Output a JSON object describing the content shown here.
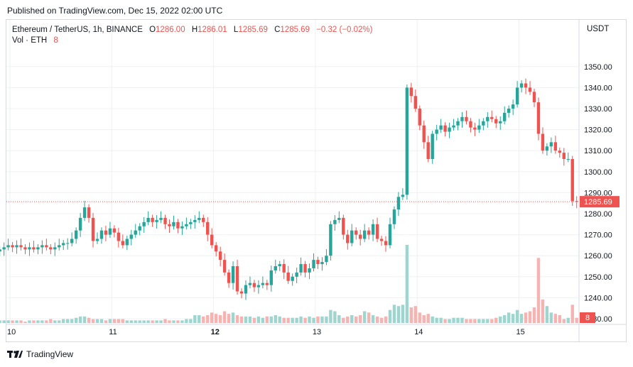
{
  "header": {
    "published_text": "Published on TradingView.com, Dec 15, 2022 02:00 UTC"
  },
  "legend": {
    "symbol": "Ethereum / TetherUS, 1h, BINANCE",
    "open_label": "O",
    "open": "1286.00",
    "high_label": "H",
    "high": "1286.01",
    "low_label": "L",
    "low": "1285.69",
    "close_label": "C",
    "close": "1285.69",
    "change": "−0.32 (−0.02%)",
    "vol_label": "Vol · ETH",
    "vol_value": "8"
  },
  "quote_currency": "USDT",
  "footer": {
    "logo_icon": "tradingview-logo-icon",
    "brand": "TradingView"
  },
  "colors": {
    "up": "#26a69a",
    "down": "#ef5350",
    "vol_up": "#9ed6cf",
    "vol_down": "#f5b3b1",
    "grid": "#eef0f3",
    "last_price_line": "#ef5350",
    "axis_text": "#131722"
  },
  "chart_data": {
    "type": "candlestick",
    "timeframe": "1h",
    "ylim": [
      1230,
      1355
    ],
    "y_ticks": [
      "1350.00",
      "1340.00",
      "1330.00",
      "1320.00",
      "1310.00",
      "1300.00",
      "1290.00",
      "1280.00",
      "1270.00",
      "1260.00",
      "1250.00",
      "1240.00",
      "1230.00"
    ],
    "x_tick_labels": [
      "10",
      "11",
      "12",
      "13",
      "14",
      "15"
    ],
    "x_tick_bold": [
      "12"
    ],
    "last_price": 1285.69,
    "last_price_label": "1285.69",
    "last_volume_label": "8",
    "candles_per_day": 24,
    "first_candle_day_offset": -0.1,
    "volume_max": 60,
    "closes": [
      1263,
      1264,
      1265,
      1264,
      1265,
      1264,
      1263,
      1264,
      1263,
      1264,
      1265,
      1264,
      1263,
      1264,
      1265,
      1266,
      1266,
      1268,
      1272,
      1278,
      1283,
      1278,
      1267,
      1268,
      1272,
      1270,
      1273,
      1271,
      1267,
      1265,
      1268,
      1270,
      1272,
      1274,
      1276,
      1278,
      1276,
      1277,
      1278,
      1275,
      1274,
      1276,
      1273,
      1274,
      1275,
      1276,
      1277,
      1278,
      1276,
      1270,
      1265,
      1262,
      1258,
      1252,
      1247,
      1255,
      1243,
      1242,
      1246,
      1247,
      1245,
      1246,
      1247,
      1246,
      1253,
      1255,
      1256,
      1252,
      1248,
      1250,
      1252,
      1256,
      1252,
      1254,
      1258,
      1256,
      1257,
      1260,
      1275,
      1277,
      1278,
      1270,
      1266,
      1272,
      1270,
      1268,
      1272,
      1270,
      1275,
      1268,
      1267,
      1265,
      1275,
      1282,
      1288,
      1289,
      1340,
      1336,
      1330,
      1322,
      1314,
      1306,
      1318,
      1320,
      1322,
      1319,
      1321,
      1322,
      1324,
      1326,
      1324,
      1321,
      1320,
      1322,
      1324,
      1326,
      1325,
      1323,
      1324,
      1328,
      1330,
      1332,
      1340,
      1342,
      1340,
      1338,
      1333,
      1318,
      1310,
      1312,
      1314,
      1310,
      1309,
      1306,
      1306,
      1286,
      1285.69
    ],
    "volumes": [
      2,
      2,
      2,
      2,
      2,
      2,
      1,
      2,
      2,
      2,
      2,
      2,
      3,
      2,
      2,
      3,
      3,
      3,
      4,
      5,
      5,
      4,
      3,
      3,
      3,
      2,
      3,
      3,
      3,
      3,
      2,
      2,
      2,
      2,
      2,
      2,
      2,
      2,
      2,
      3,
      2,
      2,
      2,
      2,
      3,
      3,
      6,
      6,
      5,
      6,
      8,
      7,
      6,
      9,
      7,
      8,
      6,
      5,
      5,
      5,
      4,
      5,
      4,
      5,
      5,
      6,
      5,
      4,
      4,
      4,
      4,
      5,
      4,
      5,
      4,
      5,
      5,
      5,
      10,
      9,
      6,
      4,
      5,
      6,
      5,
      6,
      9,
      8,
      6,
      5,
      4,
      5,
      10,
      14,
      13,
      14,
      60,
      12,
      13,
      8,
      6,
      7,
      5,
      4,
      4,
      3,
      3,
      4,
      4,
      4,
      3,
      3,
      3,
      3,
      3,
      3,
      3,
      4,
      5,
      6,
      8,
      7,
      10,
      7,
      8,
      9,
      12,
      50,
      18,
      13,
      8,
      7,
      6,
      3,
      4,
      14,
      4
    ]
  }
}
